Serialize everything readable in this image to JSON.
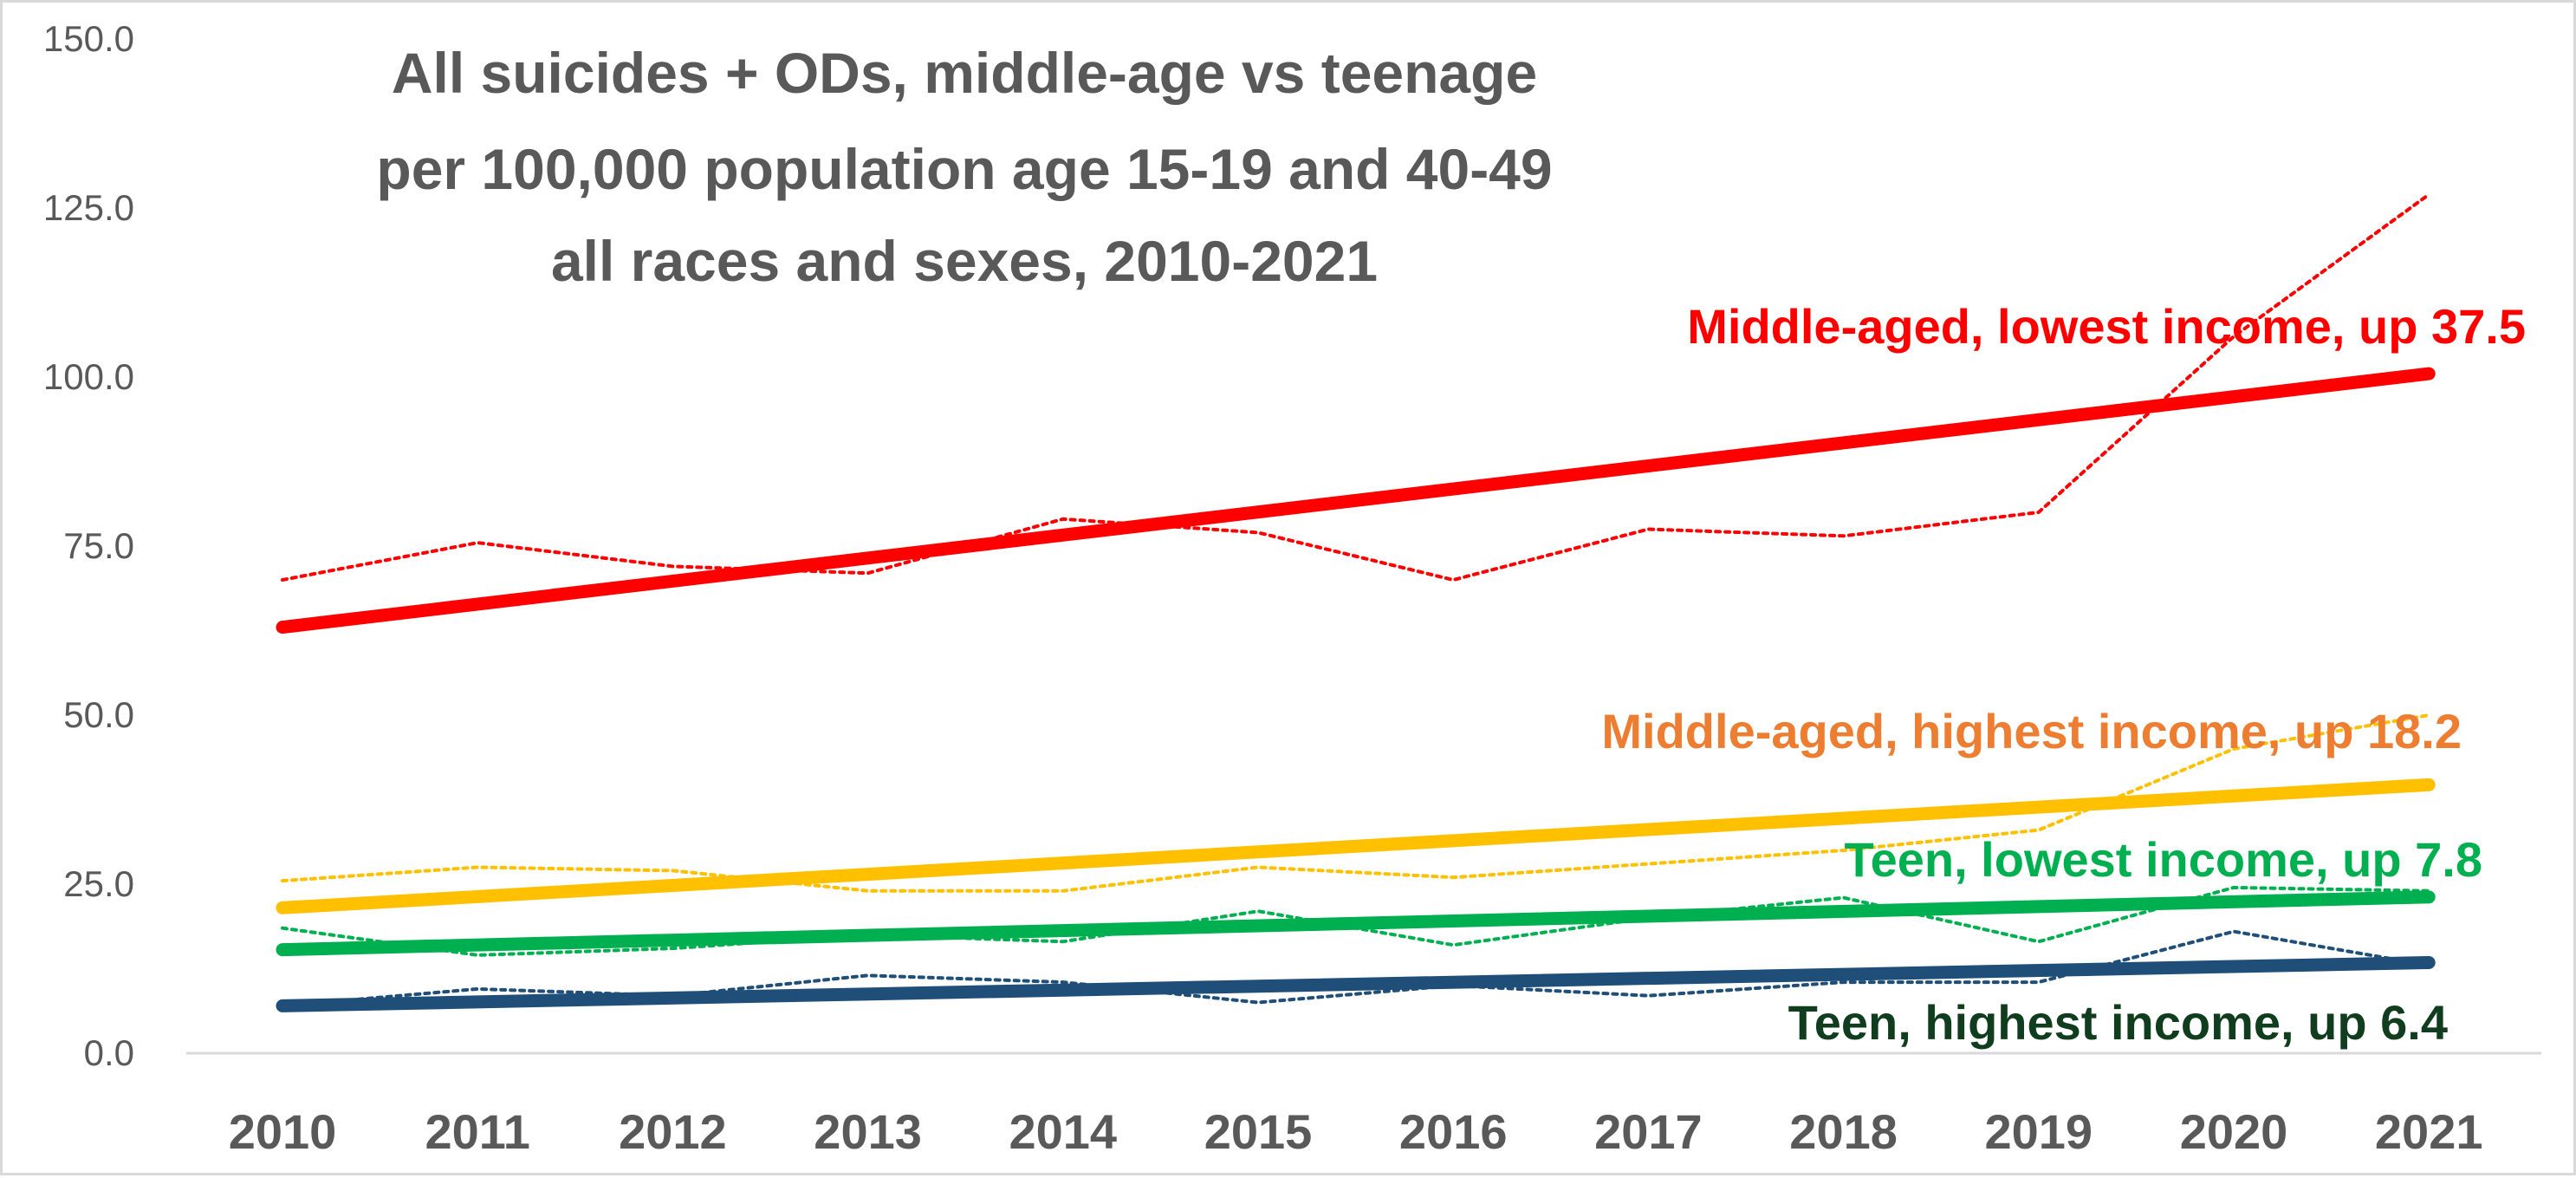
{
  "chart_data": {
    "type": "line",
    "title_lines": [
      "All suicides + ODs, middle-age vs teenage",
      "per 100,000 population age 15-19 and 40-49",
      "all races and sexes, 2010-2021"
    ],
    "xlabel": "",
    "ylabel": "",
    "x": [
      "2010",
      "2011",
      "2012",
      "2013",
      "2014",
      "2015",
      "2016",
      "2017",
      "2018",
      "2019",
      "2020",
      "2021"
    ],
    "y_ticks": [
      "0.0",
      "25.0",
      "50.0",
      "75.0",
      "100.0",
      "125.0",
      "150.0"
    ],
    "ylim": [
      0,
      150
    ],
    "grid": false,
    "legend": "none",
    "series": [
      {
        "name": "Middle-aged, lowest income, up 37.5",
        "color": "#ff0000",
        "values": [
          70,
          75.5,
          72,
          71,
          79,
          77,
          70,
          77.5,
          76.5,
          80,
          106,
          127
        ],
        "trend": [
          63,
          100.5
        ]
      },
      {
        "name": "Middle-aged, highest income, up 18.2",
        "color": "#ffc000",
        "label_color": "#ed7d31",
        "values": [
          25.5,
          27.5,
          27,
          24,
          24,
          27.5,
          26,
          28,
          30,
          33,
          45,
          50
        ],
        "trend": [
          21.5,
          39.7
        ]
      },
      {
        "name": "Teen, lowest income, up 7.8",
        "color": "#00b050",
        "values": [
          18.5,
          14.5,
          15.5,
          17.5,
          16.5,
          21,
          16,
          20,
          23,
          16.5,
          24.5,
          24
        ],
        "trend": [
          15.3,
          23.1
        ]
      },
      {
        "name": "Teen, highest income,  up 6.4",
        "color": "#1f4e79",
        "label_color": "#0f3d1e",
        "values": [
          7,
          9.5,
          8.5,
          11.5,
          10.5,
          7.5,
          10,
          8.5,
          10.5,
          10.5,
          18,
          13
        ],
        "trend": [
          7,
          13.4
        ]
      }
    ]
  }
}
